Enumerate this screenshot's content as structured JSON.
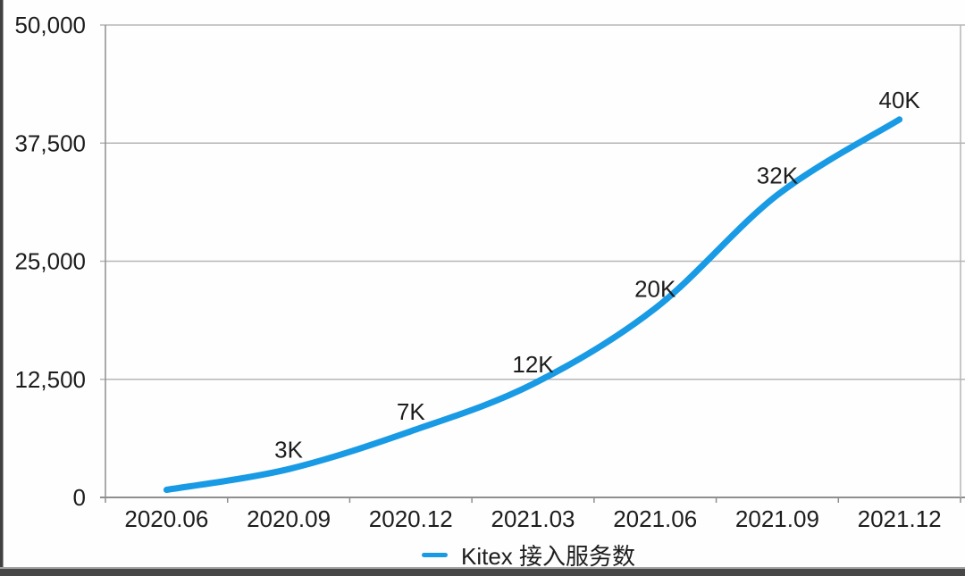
{
  "chart_data": {
    "type": "line",
    "title": "",
    "x": [
      "2020.06",
      "2020.09",
      "2020.12",
      "2021.03",
      "2021.06",
      "2021.09",
      "2021.12"
    ],
    "series": [
      {
        "name": "Kitex 接入服务数",
        "values": [
          800,
          3000,
          7000,
          12000,
          20000,
          32000,
          40000
        ],
        "point_labels": [
          "",
          "3K",
          "7K",
          "12K",
          "20K",
          "32K",
          "40K"
        ],
        "color": "#189ae4"
      }
    ],
    "ylim": [
      0,
      50000
    ],
    "y_ticks": [
      0,
      12500,
      25000,
      37500,
      50000
    ],
    "y_tick_labels": [
      "0",
      "12,500",
      "25,000",
      "37,500",
      "50,000"
    ],
    "grid": true,
    "legend_position": "bottom"
  },
  "colors": {
    "line": "#189ae4",
    "gridline": "#b5b5b5",
    "axis": "#8f8f8f",
    "text": "#1d1d1d"
  }
}
